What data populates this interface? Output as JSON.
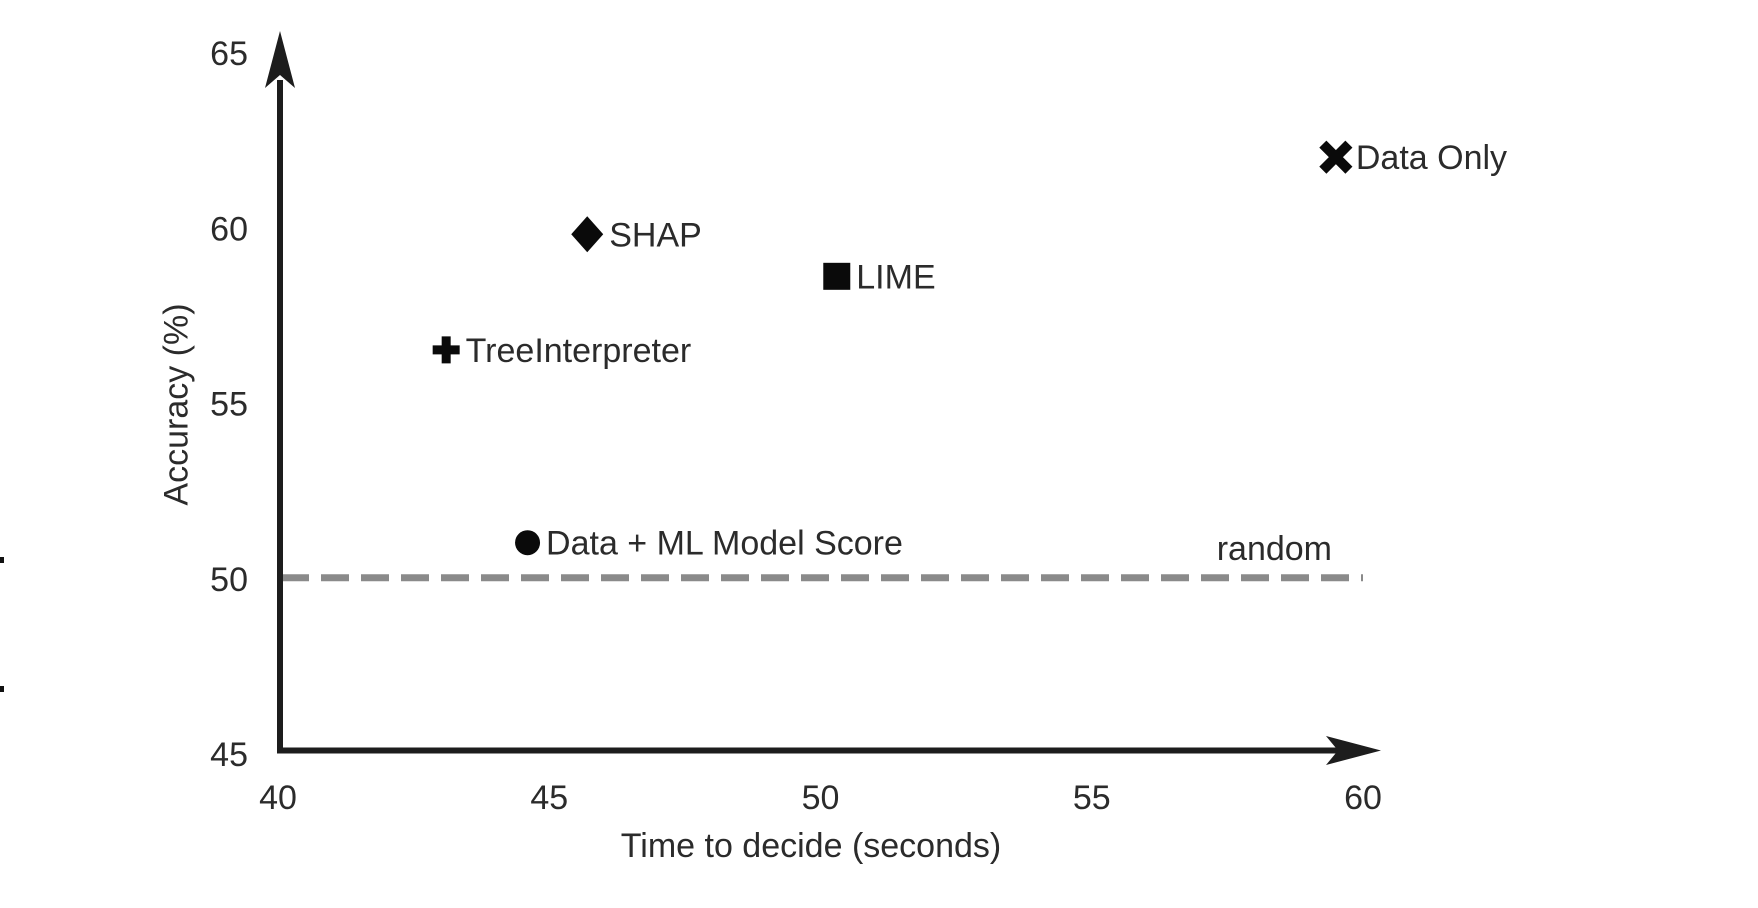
{
  "chart_data": {
    "type": "scatter",
    "title": "",
    "xlabel": "Time to decide (seconds)",
    "ylabel": "Accuracy (%)",
    "xlim": [
      40,
      60
    ],
    "ylim": [
      45,
      65
    ],
    "xticks": [
      40,
      45,
      50,
      55,
      60
    ],
    "yticks": [
      45,
      50,
      55,
      60,
      65
    ],
    "grid": false,
    "legend_position": "none",
    "points": [
      {
        "label": "SHAP",
        "x": 45.7,
        "y": 59.8,
        "marker": "diamond"
      },
      {
        "label": "LIME",
        "x": 50.3,
        "y": 58.6,
        "marker": "square"
      },
      {
        "label": "TreeInterpreter",
        "x": 43.1,
        "y": 56.5,
        "marker": "plus"
      },
      {
        "label": "Data + ML Model Score",
        "x": 44.6,
        "y": 51.0,
        "marker": "circle"
      },
      {
        "label": "Data Only",
        "x": 59.5,
        "y": 62.0,
        "marker": "x"
      }
    ],
    "reference_line": {
      "y": 50,
      "label": "random",
      "style": "dashed"
    }
  },
  "colors": {
    "background": "#ffffff",
    "axis": "#1d1d1d",
    "text": "#2b2b2b",
    "marker": "#0a0a0a",
    "reference": "#8a8a8a"
  }
}
